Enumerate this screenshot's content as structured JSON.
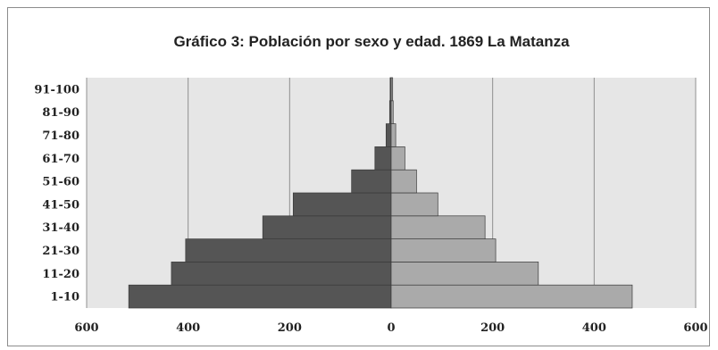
{
  "chart_data": {
    "type": "bar",
    "orientation": "horizontal",
    "title": "Gráfico 3: Población por sexo y edad. 1869 La Matanza",
    "xlabel": "",
    "ylabel": "",
    "categories": [
      "1-10",
      "11-20",
      "21-30",
      "31-40",
      "41-50",
      "51-60",
      "61-70",
      "71-80",
      "81-90",
      "91-100"
    ],
    "series": [
      {
        "values": [
          -517,
          -433,
          -405,
          -253,
          -193,
          -78,
          -32,
          -10,
          -3,
          -2
        ],
        "color": "#555555"
      },
      {
        "values": [
          475,
          290,
          206,
          185,
          92,
          50,
          27,
          9,
          4,
          3
        ],
        "color": "#aaaaaa"
      }
    ],
    "x_ticks": [
      -600,
      -400,
      -200,
      0,
      200,
      400,
      600
    ],
    "x_tick_labels": [
      "600",
      "400",
      "200",
      "0",
      "200",
      "400",
      "600"
    ],
    "xlim": [
      -600,
      600
    ],
    "grid": "vertical",
    "legend": "none",
    "plot_background": "#e6e6e6",
    "gridline_color": "#909090"
  }
}
